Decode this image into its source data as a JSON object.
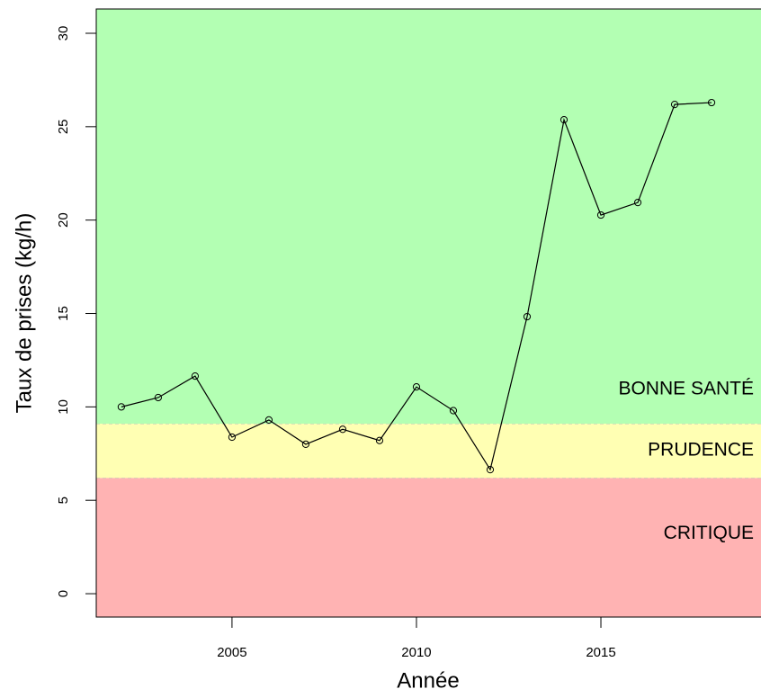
{
  "chart_data": {
    "type": "line",
    "xlabel": "Année",
    "ylabel": "Taux de prises (kg/h)",
    "x": [
      2002,
      2003,
      2004,
      2005,
      2006,
      2007,
      2008,
      2009,
      2010,
      2011,
      2012,
      2013,
      2014,
      2015,
      2016,
      2017,
      2018
    ],
    "series": [
      {
        "color": "#000000",
        "values": [
          10.0,
          10.5,
          11.65,
          8.38,
          9.3,
          8.0,
          8.8,
          8.2,
          11.07,
          9.8,
          6.64,
          14.83,
          25.37,
          20.27,
          20.94,
          26.19,
          26.29
        ]
      }
    ],
    "xlim": [
      2001.32,
      2019.34
    ],
    "ylim": [
      -1.25,
      31.3
    ],
    "xticks": [
      2005,
      2010,
      2015
    ],
    "yticks": [
      0,
      5,
      10,
      15,
      20,
      25,
      30
    ],
    "zones": [
      {
        "name": "CRITIQUE",
        "color": "#ffb3b3",
        "text_color": "#e8202a",
        "max": 6.2
      },
      {
        "name": "PRUDENCE",
        "color": "#ffffb3",
        "text_color": "#f5a05a",
        "max": 9.1
      },
      {
        "name": "BONNE SANTÉ",
        "color": "#b3ffb3",
        "text_color": "#22b35a"
      }
    ]
  }
}
